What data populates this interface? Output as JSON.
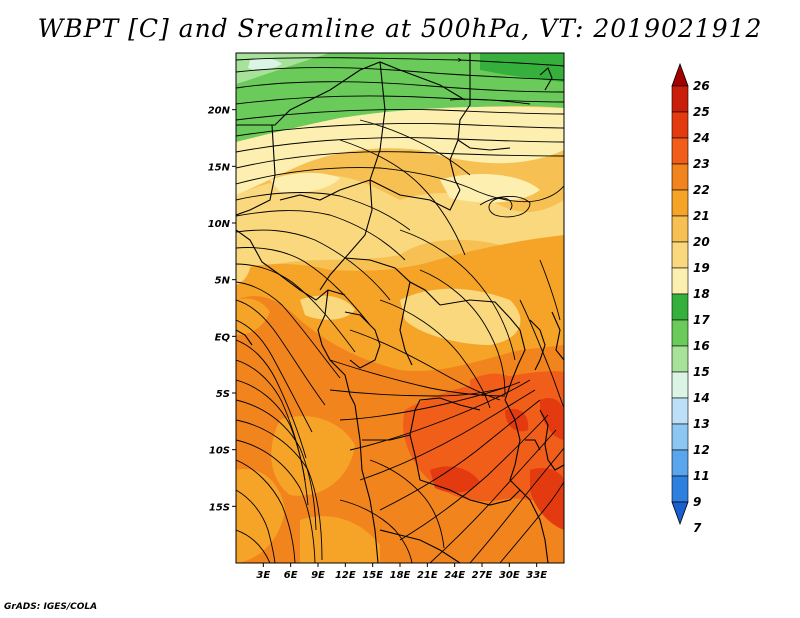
{
  "title": "WBPT [C] and Sreamline at 500hPa, VT: 2019021912",
  "credit": "GrADS: IGES/COLA",
  "map": {
    "lon_range": [
      0,
      36
    ],
    "lat_range": [
      -20,
      25
    ],
    "lat_labels": [
      "20N",
      "15N",
      "10N",
      "5N",
      "EQ",
      "5S",
      "10S",
      "15S"
    ],
    "lat_values": [
      20,
      15,
      10,
      5,
      0,
      -5,
      -10,
      -15
    ],
    "lon_labels": [
      "3E",
      "6E",
      "9E",
      "12E",
      "15E",
      "18E",
      "21E",
      "24E",
      "27E",
      "30E",
      "33E"
    ],
    "lon_values": [
      3,
      6,
      9,
      12,
      15,
      18,
      21,
      24,
      27,
      30,
      33
    ]
  },
  "colorbar": {
    "labels": [
      "26",
      "25",
      "24",
      "23",
      "22",
      "21",
      "20",
      "19",
      "18",
      "17",
      "16",
      "15",
      "14",
      "13",
      "12",
      "11",
      "9",
      "7"
    ],
    "colors": [
      "#a50000",
      "#c81e0a",
      "#e43a10",
      "#f05e1a",
      "#f2841e",
      "#f5a428",
      "#f7c052",
      "#fad87e",
      "#fcefb0",
      "#36b03c",
      "#6acb5a",
      "#a7e29a",
      "#dcf4e6",
      "#bde0f8",
      "#8cc6f2",
      "#5aa6ec",
      "#2e80e0",
      "#1a5fd0"
    ]
  }
}
